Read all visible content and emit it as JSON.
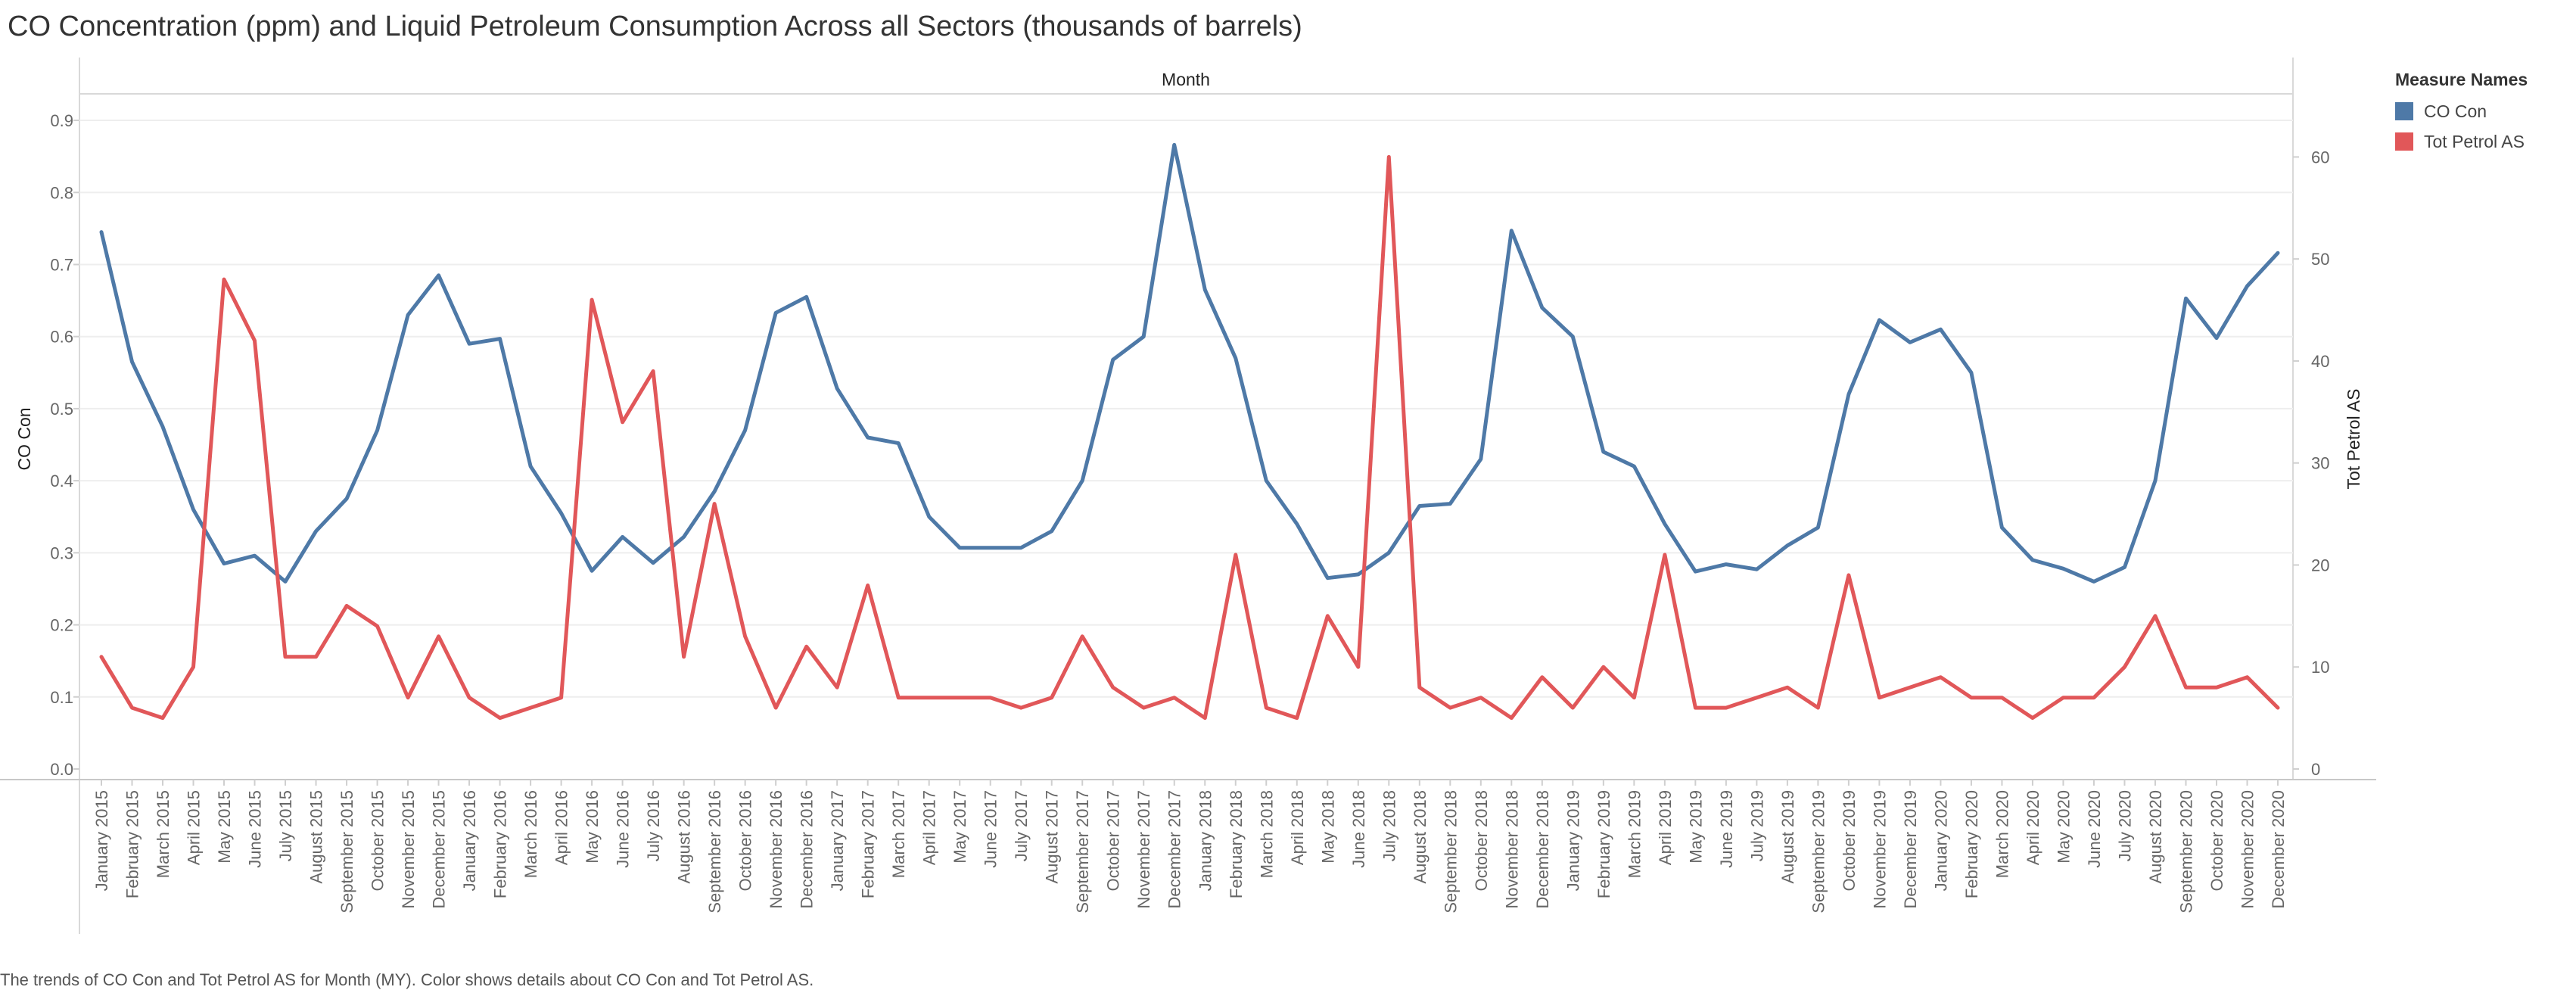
{
  "title": "CO Concentration (ppm) and Liquid Petroleum Consumption Across all Sectors (thousands of barrels)",
  "caption": "The trends of CO Con and Tot Petrol AS for Month (MY).  Color shows details about CO Con and Tot Petrol AS.",
  "legend": {
    "title": "Measure Names",
    "items": [
      {
        "label": "CO Con",
        "color": "#4e79a7"
      },
      {
        "label": "Tot Petrol AS",
        "color": "#e15759"
      }
    ]
  },
  "chart_data": {
    "type": "line",
    "title": "CO Concentration (ppm) and Liquid Petroleum Consumption Across all Sectors (thousands of barrels)",
    "xlabel": "Month",
    "ylabel_left": "CO Con",
    "ylabel_right": "Tot Petrol AS",
    "ylim_left": [
      0,
      0.92
    ],
    "ylim_right": [
      0,
      65
    ],
    "yticks_left": [
      "0.0",
      "0.1",
      "0.2",
      "0.3",
      "0.4",
      "0.5",
      "0.6",
      "0.7",
      "0.8",
      "0.9"
    ],
    "yticks_right": [
      "0",
      "10",
      "20",
      "30",
      "40",
      "50",
      "60"
    ],
    "grid": "horizontal",
    "legend_position": "right",
    "categories": [
      "January 2015",
      "February 2015",
      "March 2015",
      "April 2015",
      "May 2015",
      "June 2015",
      "July 2015",
      "August 2015",
      "September 2015",
      "October 2015",
      "November 2015",
      "December 2015",
      "January 2016",
      "February 2016",
      "March 2016",
      "April 2016",
      "May 2016",
      "June 2016",
      "July 2016",
      "August 2016",
      "September 2016",
      "October 2016",
      "November 2016",
      "December 2016",
      "January 2017",
      "February 2017",
      "March 2017",
      "April 2017",
      "May 2017",
      "June 2017",
      "July 2017",
      "August 2017",
      "September 2017",
      "October 2017",
      "November 2017",
      "December 2017",
      "January 2018",
      "February 2018",
      "March 2018",
      "April 2018",
      "May 2018",
      "June 2018",
      "July 2018",
      "August 2018",
      "September 2018",
      "October 2018",
      "November 2018",
      "December 2018",
      "January 2019",
      "February 2019",
      "March 2019",
      "April 2019",
      "May 2019",
      "June 2019",
      "July 2019",
      "August 2019",
      "September 2019",
      "October 2019",
      "November 2019",
      "December 2019",
      "January 2020",
      "February 2020",
      "March 2020",
      "April 2020",
      "May 2020",
      "June 2020",
      "July 2020",
      "August 2020",
      "September 2020",
      "October 2020",
      "November 2020",
      "December 2020"
    ],
    "series": [
      {
        "name": "CO Con",
        "axis": "left",
        "color": "#4e79a7",
        "values": [
          0.745,
          0.565,
          0.475,
          0.36,
          0.285,
          0.296,
          0.26,
          0.33,
          0.375,
          0.47,
          0.63,
          0.685,
          0.59,
          0.597,
          0.42,
          0.355,
          0.275,
          0.322,
          0.286,
          0.322,
          0.385,
          0.47,
          0.633,
          0.655,
          0.528,
          0.46,
          0.452,
          0.35,
          0.307,
          0.307,
          0.307,
          0.33,
          0.4,
          0.568,
          0.6,
          0.866,
          0.665,
          0.57,
          0.4,
          0.34,
          0.265,
          0.27,
          0.3,
          0.365,
          0.368,
          0.43,
          0.747,
          0.64,
          0.6,
          0.44,
          0.42,
          0.34,
          0.274,
          0.284,
          0.277,
          0.31,
          0.335,
          0.52,
          0.623,
          0.592,
          0.61,
          0.55,
          0.335,
          0.29,
          0.278,
          0.26,
          0.28,
          0.4,
          0.653,
          0.598,
          0.67,
          0.716
        ]
      },
      {
        "name": "Tot Petrol AS",
        "axis": "right",
        "color": "#e15759",
        "values": [
          11,
          6,
          5,
          10,
          48,
          42,
          11,
          11,
          16,
          14,
          7,
          13,
          7,
          5,
          6,
          7,
          46,
          34,
          39,
          11,
          26,
          13,
          6,
          12,
          8,
          18,
          7,
          7,
          7,
          7,
          6,
          7,
          13,
          8,
          6,
          7,
          5,
          21,
          6,
          5,
          15,
          10,
          60,
          8,
          6,
          7,
          5,
          9,
          6,
          10,
          7,
          21,
          6,
          6,
          7,
          8,
          6,
          19,
          7,
          8,
          9,
          7,
          7,
          5,
          7,
          7,
          10,
          15,
          8,
          8,
          9,
          6
        ]
      }
    ]
  }
}
